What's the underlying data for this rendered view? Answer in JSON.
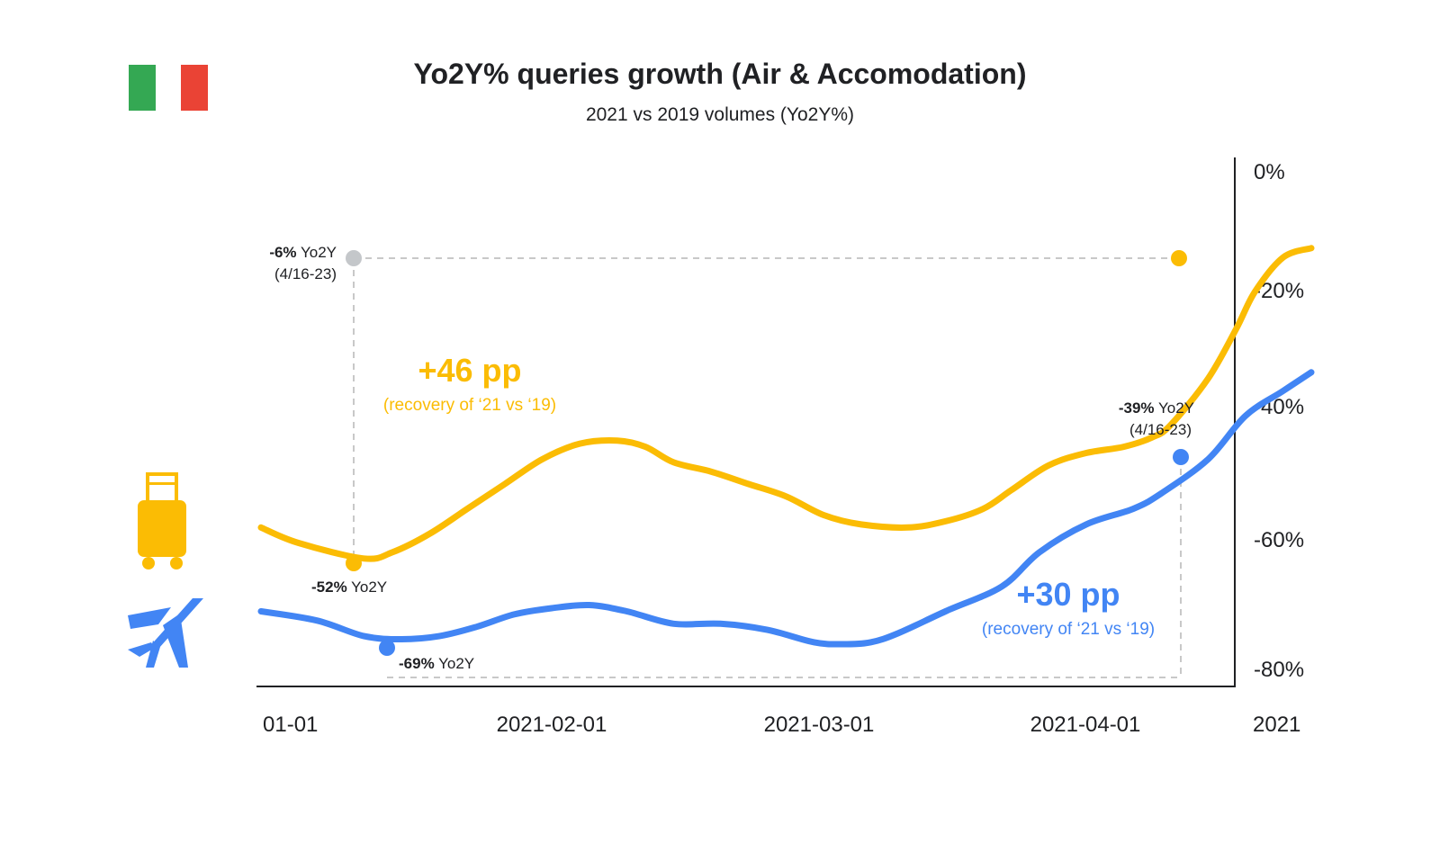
{
  "chart_data": {
    "type": "line",
    "title": "Yo2Y% queries growth (Air & Accomodation)",
    "subtitle": "2021 vs 2019 volumes (Yo2Y%)",
    "x_range": [
      "2021-01-01",
      "2021-04-23"
    ],
    "x_ticks": [
      {
        "date": "2021-01-01",
        "label": "01-01"
      },
      {
        "date": "2021-02-01",
        "label": "2021-02-01"
      },
      {
        "date": "2021-03-01",
        "label": "2021-03-01"
      },
      {
        "date": "2021-04-01",
        "label": "2021-04-01"
      }
    ],
    "x_edge_label": "2021",
    "y_axis_position": "right",
    "ylim": [
      -82,
      0
    ],
    "y_ticks": [
      {
        "value": 0,
        "label": "0%"
      },
      {
        "value": -20,
        "label": "-20%"
      },
      {
        "value": -40,
        "label": "-40%"
      },
      {
        "value": -60,
        "label": "-60%"
      },
      {
        "value": -80,
        "label": "-80%"
      }
    ],
    "grid": false,
    "series": [
      {
        "key": "accommodation",
        "color": "#FBBC04",
        "points": [
          [
            "2021-01-01",
            -57
          ],
          [
            "2021-01-05",
            -59.5
          ],
          [
            "2021-01-12",
            -62
          ],
          [
            "2021-01-15",
            -61
          ],
          [
            "2021-01-19",
            -58
          ],
          [
            "2021-01-23",
            -54
          ],
          [
            "2021-01-27",
            -50
          ],
          [
            "2021-01-31",
            -46
          ],
          [
            "2021-02-04",
            -43.5
          ],
          [
            "2021-02-08",
            -43
          ],
          [
            "2021-02-11",
            -44
          ],
          [
            "2021-02-14",
            -46.5
          ],
          [
            "2021-02-18",
            -48
          ],
          [
            "2021-02-22",
            -50
          ],
          [
            "2021-02-26",
            -52
          ],
          [
            "2021-03-02",
            -55
          ],
          [
            "2021-03-06",
            -56.5
          ],
          [
            "2021-03-11",
            -57
          ],
          [
            "2021-03-15",
            -56
          ],
          [
            "2021-03-19",
            -54
          ],
          [
            "2021-03-22",
            -51
          ],
          [
            "2021-03-26",
            -47
          ],
          [
            "2021-03-30",
            -45
          ],
          [
            "2021-04-03",
            -44
          ],
          [
            "2021-04-06",
            -42.5
          ],
          [
            "2021-04-08",
            -40.5
          ],
          [
            "2021-04-12",
            -33
          ],
          [
            "2021-04-15",
            -25
          ],
          [
            "2021-04-17",
            -19
          ],
          [
            "2021-04-20",
            -13.5
          ],
          [
            "2021-04-23",
            -12
          ]
        ]
      },
      {
        "key": "air",
        "color": "#4285F4",
        "points": [
          [
            "2021-01-01",
            -70.5
          ],
          [
            "2021-01-07",
            -72
          ],
          [
            "2021-01-12",
            -74.5
          ],
          [
            "2021-01-16",
            -75
          ],
          [
            "2021-01-20",
            -74.5
          ],
          [
            "2021-01-24",
            -73
          ],
          [
            "2021-01-28",
            -71
          ],
          [
            "2021-02-01",
            -70
          ],
          [
            "2021-02-05",
            -69.5
          ],
          [
            "2021-02-09",
            -70.5
          ],
          [
            "2021-02-14",
            -72.5
          ],
          [
            "2021-02-19",
            -72.5
          ],
          [
            "2021-02-24",
            -73.5
          ],
          [
            "2021-03-01",
            -75.5
          ],
          [
            "2021-03-04",
            -75.8
          ],
          [
            "2021-03-07",
            -75.5
          ],
          [
            "2021-03-10",
            -74
          ],
          [
            "2021-03-15",
            -70.5
          ],
          [
            "2021-03-21",
            -66.5
          ],
          [
            "2021-03-25",
            -61
          ],
          [
            "2021-03-30",
            -56.5
          ],
          [
            "2021-04-04",
            -54
          ],
          [
            "2021-04-07",
            -51.5
          ],
          [
            "2021-04-12",
            -46
          ],
          [
            "2021-04-16",
            -39
          ],
          [
            "2021-04-20",
            -35
          ],
          [
            "2021-04-23",
            -32
          ]
        ]
      }
    ],
    "markers": [
      {
        "series": "accommodation",
        "date": "2021-01-12",
        "value": -52,
        "pre_label": "-52%",
        "post_label": "Yo2Y"
      },
      {
        "series": "accommodation",
        "date": "2021-04-16",
        "value": -6
      },
      {
        "series": "air",
        "date": "2021-01-16",
        "value": -69,
        "pre_label": "-69%",
        "post_label": "Yo2Y"
      },
      {
        "series": "air",
        "date": "2021-04-16",
        "value": -39
      }
    ],
    "reference_callouts": [
      {
        "pre_label": "-6%",
        "post_label": "Yo2Y",
        "period": "(4/16-23)"
      },
      {
        "pre_label": "-39%",
        "post_label": "Yo2Y",
        "period": "(4/16-23)"
      }
    ],
    "annotations": [
      {
        "series": "accommodation",
        "headline": "+46 pp",
        "detail": "(recovery of ‘21 vs ‘19)"
      },
      {
        "series": "air",
        "headline": "+30 pp",
        "detail": "(recovery of ‘21 vs ‘19)"
      }
    ]
  },
  "icons": {
    "flag": "italy-flag-icon",
    "accommodation": "suitcase-icon",
    "air": "airplane-icon"
  },
  "colors": {
    "flag_green": "#34A853",
    "flag_red": "#EA4335",
    "accommodation": "#FBBC04",
    "air": "#4285F4",
    "reference_dot": "#C4C7CA",
    "dashed_line": "#C8C8C8"
  }
}
